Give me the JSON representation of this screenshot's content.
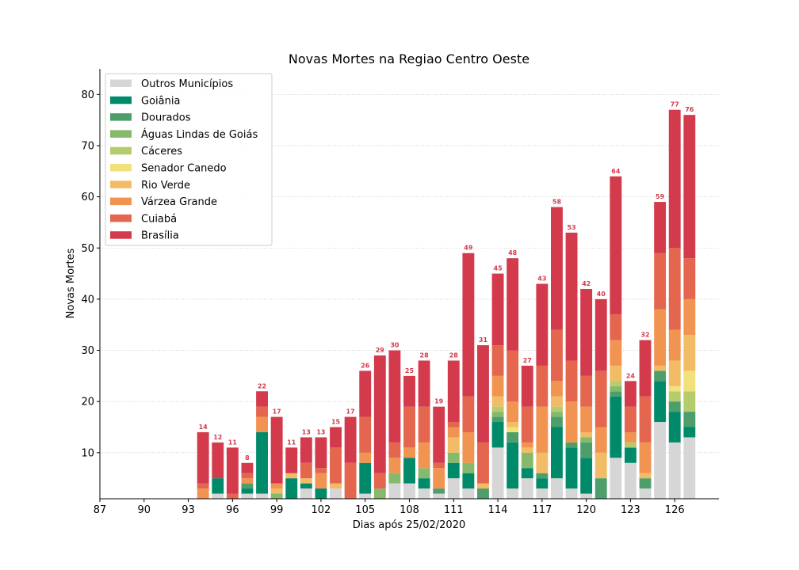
{
  "chart_data": {
    "type": "bar",
    "stacked": true,
    "title": "Novas Mortes na Regiao Centro Oeste",
    "xlabel": "Dias após 25/02/2020",
    "ylabel": "Novas Mortes",
    "xlim": [
      87,
      129
    ],
    "ylim": [
      1,
      85
    ],
    "xticks": [
      87,
      90,
      93,
      96,
      99,
      102,
      105,
      108,
      111,
      114,
      117,
      120,
      123,
      126
    ],
    "yticks": [
      10,
      20,
      30,
      40,
      50,
      60,
      70,
      80
    ],
    "grid": "horizontal-dotted",
    "legend_position": "top-left",
    "x": [
      94,
      95,
      96,
      97,
      98,
      99,
      100,
      101,
      102,
      103,
      104,
      105,
      106,
      107,
      108,
      109,
      110,
      111,
      112,
      113,
      114,
      115,
      116,
      117,
      118,
      119,
      120,
      121,
      122,
      123,
      124,
      125,
      126,
      127
    ],
    "totals": [
      14,
      12,
      11,
      8,
      22,
      17,
      11,
      13,
      13,
      15,
      17,
      26,
      29,
      30,
      25,
      28,
      19,
      28,
      49,
      31,
      45,
      48,
      27,
      43,
      58,
      53,
      42,
      40,
      64,
      24,
      32,
      59,
      77,
      76
    ],
    "series": [
      {
        "name": "Outros Municípios",
        "color": "#d6d6d6",
        "values": [
          0,
          2,
          0,
          2,
          2,
          0,
          0,
          3,
          0,
          3,
          0,
          2,
          0,
          4,
          4,
          3,
          2,
          5,
          3,
          0,
          11,
          3,
          5,
          3,
          5,
          3,
          2,
          0,
          9,
          8,
          3,
          16,
          12,
          13
        ]
      },
      {
        "name": "Goiânia",
        "color": "#008a69",
        "values": [
          0,
          3,
          0,
          1,
          12,
          1,
          5,
          1,
          3,
          0,
          0,
          6,
          1,
          0,
          5,
          2,
          0,
          3,
          3,
          1,
          5,
          9,
          2,
          2,
          10,
          8,
          7,
          1,
          12,
          3,
          0,
          8,
          6,
          2
        ]
      },
      {
        "name": "Dourados",
        "color": "#4d9e6b",
        "values": [
          1,
          0,
          0,
          1,
          0,
          0,
          0,
          0,
          0,
          0,
          0,
          0,
          0,
          0,
          0,
          0,
          1,
          0,
          0,
          2,
          1,
          2,
          0,
          1,
          2,
          1,
          3,
          4,
          1,
          0,
          2,
          2,
          2,
          3
        ]
      },
      {
        "name": "Águas Lindas de Goiás",
        "color": "#86b96c",
        "values": [
          0,
          0,
          0,
          0,
          0,
          1,
          0,
          0,
          0,
          0,
          0,
          0,
          2,
          2,
          0,
          2,
          0,
          2,
          2,
          0,
          1,
          0,
          3,
          0,
          1,
          0,
          1,
          0,
          1,
          0,
          0,
          0,
          0,
          0
        ]
      },
      {
        "name": "Cáceres",
        "color": "#b4cc6c",
        "values": [
          0,
          0,
          0,
          0,
          0,
          0,
          0,
          0,
          0,
          0,
          0,
          0,
          0,
          0,
          0,
          0,
          0,
          0,
          0,
          0,
          1,
          0,
          0,
          0,
          1,
          0,
          0,
          0,
          1,
          1,
          0,
          0,
          2,
          4
        ]
      },
      {
        "name": "Senador Canedo",
        "color": "#f2e07a",
        "values": [
          0,
          0,
          0,
          0,
          0,
          0,
          0,
          0,
          0,
          0,
          0,
          0,
          0,
          0,
          0,
          0,
          0,
          0,
          0,
          0,
          0,
          1,
          0,
          0,
          0,
          0,
          0,
          0,
          0,
          0,
          0,
          0,
          1,
          4
        ]
      },
      {
        "name": "Rio Verde",
        "color": "#f2bb66",
        "values": [
          0,
          0,
          0,
          0,
          0,
          1,
          1,
          1,
          0,
          1,
          0,
          0,
          0,
          0,
          0,
          0,
          0,
          3,
          0,
          1,
          2,
          1,
          1,
          4,
          2,
          0,
          1,
          5,
          3,
          0,
          1,
          1,
          5,
          7
        ]
      },
      {
        "name": "Várzea Grande",
        "color": "#f19452",
        "values": [
          2,
          0,
          1,
          1,
          3,
          1,
          0,
          0,
          3,
          0,
          1,
          2,
          0,
          3,
          2,
          5,
          4,
          2,
          6,
          0,
          4,
          4,
          1,
          9,
          3,
          8,
          5,
          5,
          5,
          2,
          6,
          11,
          6,
          7
        ]
      },
      {
        "name": "Cuiabá",
        "color": "#e4664e",
        "values": [
          1,
          0,
          1,
          1,
          2,
          0,
          0,
          3,
          1,
          7,
          7,
          7,
          3,
          3,
          8,
          7,
          1,
          1,
          7,
          8,
          6,
          10,
          7,
          8,
          10,
          8,
          6,
          11,
          5,
          5,
          9,
          11,
          16,
          8
        ]
      },
      {
        "name": "Brasília",
        "color": "#d33a4c",
        "values": [
          10,
          7,
          9,
          2,
          3,
          13,
          5,
          5,
          6,
          4,
          9,
          9,
          23,
          18,
          6,
          9,
          11,
          12,
          28,
          19,
          14,
          18,
          8,
          16,
          24,
          25,
          17,
          14,
          27,
          5,
          11,
          10,
          27,
          28
        ]
      }
    ]
  }
}
